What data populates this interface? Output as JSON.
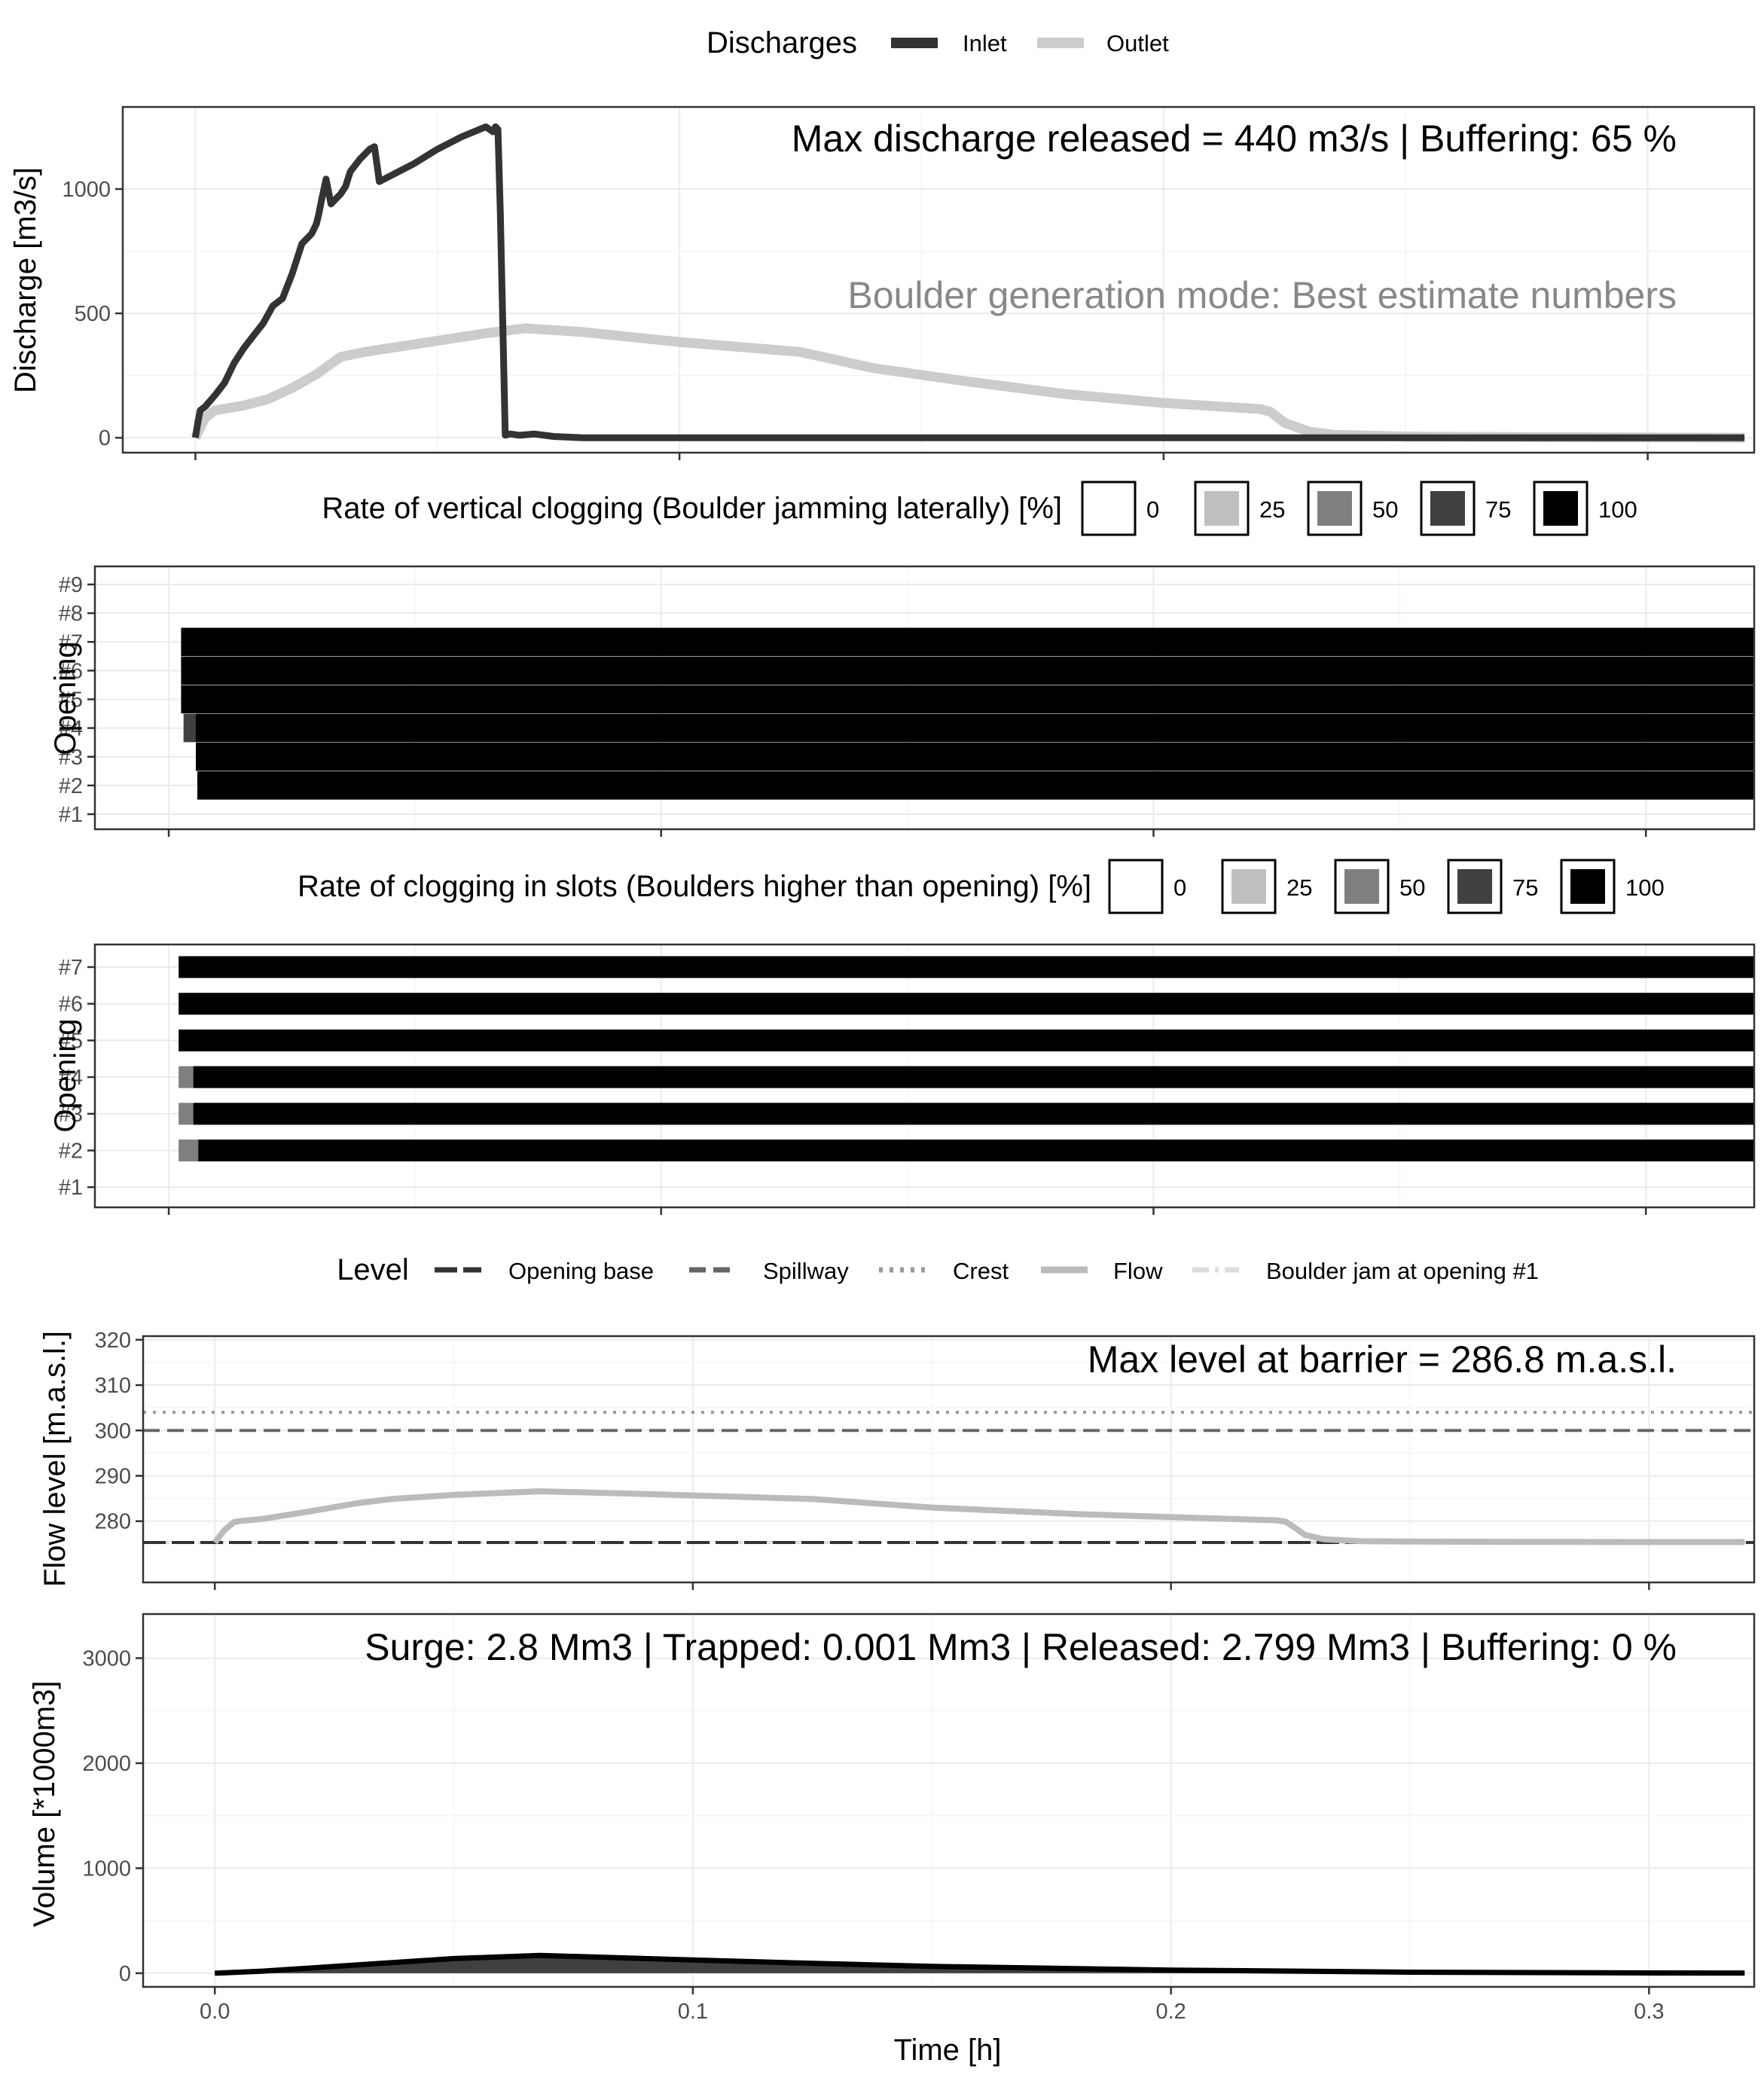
{
  "figure": {
    "x_axis": {
      "label": "Time [h]",
      "range": [
        -0.015,
        0.322
      ],
      "ticks": [
        0.0,
        0.1,
        0.2,
        0.3
      ],
      "tick_labels": [
        "0.0",
        "0.1",
        "0.2",
        "0.3"
      ]
    }
  },
  "legends": {
    "discharges": {
      "title": "Discharges",
      "items": [
        "Inlet",
        "Outlet"
      ]
    },
    "vertical": {
      "title": "Rate of vertical clogging (Boulder jamming laterally) [%]",
      "items": [
        "0",
        "25",
        "50",
        "75",
        "100"
      ]
    },
    "slots": {
      "title": "Rate of clogging in slots (Boulders higher than opening) [%]",
      "items": [
        "0",
        "25",
        "50",
        "75",
        "100"
      ]
    },
    "level": {
      "title": "Level",
      "items": [
        "Opening base",
        "Spillway",
        "Crest",
        "Flow",
        "Boulder jam at opening #1"
      ]
    }
  },
  "colors": {
    "inlet": "#333333",
    "outlet": "#cccccc",
    "fill_scale": [
      "#ffffff",
      "#bfbfbf",
      "#7f7f7f",
      "#404040",
      "#000000"
    ],
    "grid_major": "#ebebeb",
    "grid_minor": "#f5f5f5",
    "annotation_grey": "#888888"
  },
  "chart_data": [
    {
      "type": "line",
      "title": "Discharge",
      "ylabel": "Discharge [m3/s]",
      "ylim": [
        -60,
        1330
      ],
      "yticks": [
        0,
        500,
        1000
      ],
      "ytick_labels": [
        "0",
        "500",
        "1000"
      ],
      "annotation": "Max discharge released = 440 m3/s | Buffering: 65 %",
      "subannotation": "Boulder generation mode: Best estimate numbers",
      "series": [
        {
          "name": "Inlet",
          "x": [
            0.0,
            0.0005,
            0.001,
            0.002,
            0.004,
            0.006,
            0.008,
            0.01,
            0.012,
            0.014,
            0.016,
            0.018,
            0.02,
            0.022,
            0.024,
            0.025,
            0.0255,
            0.026,
            0.027,
            0.028,
            0.03,
            0.031,
            0.0315,
            0.032,
            0.034,
            0.036,
            0.037,
            0.0375,
            0.038,
            0.045,
            0.05,
            0.055,
            0.06,
            0.0615,
            0.062,
            0.0625,
            0.063,
            0.064,
            0.065,
            0.067,
            0.07,
            0.074,
            0.08,
            0.1,
            0.15,
            0.2,
            0.3,
            0.32
          ],
          "values": [
            0,
            60,
            110,
            125,
            170,
            220,
            300,
            360,
            410,
            460,
            530,
            560,
            660,
            780,
            820,
            860,
            900,
            950,
            1040,
            940,
            980,
            1010,
            1040,
            1070,
            1120,
            1160,
            1170,
            1100,
            1030,
            1100,
            1160,
            1210,
            1250,
            1230,
            1250,
            1240,
            900,
            10,
            15,
            10,
            15,
            5,
            0,
            0,
            0,
            0,
            0,
            0
          ]
        },
        {
          "name": "Outlet",
          "x": [
            0.0,
            0.001,
            0.002,
            0.004,
            0.007,
            0.01,
            0.015,
            0.02,
            0.025,
            0.03,
            0.035,
            0.04,
            0.05,
            0.06,
            0.068,
            0.08,
            0.1,
            0.125,
            0.14,
            0.16,
            0.18,
            0.2,
            0.22,
            0.222,
            0.225,
            0.23,
            0.235,
            0.25,
            0.28,
            0.32
          ],
          "values": [
            0,
            40,
            80,
            110,
            120,
            130,
            155,
            200,
            255,
            325,
            345,
            360,
            390,
            420,
            440,
            425,
            385,
            345,
            280,
            225,
            175,
            140,
            115,
            105,
            60,
            25,
            12,
            5,
            2,
            0
          ]
        }
      ]
    },
    {
      "type": "heatmap",
      "title": "Rate of vertical clogging (Boulder jamming laterally) [%]",
      "ylabel": "Opening",
      "categories": [
        "#1",
        "#2",
        "#3",
        "#4",
        "#5",
        "#6",
        "#7",
        "#8",
        "#9"
      ],
      "tick_labels": [
        "#9",
        "#8",
        "#7",
        "#6",
        "#5",
        "#4",
        "#3",
        "#2",
        "#1"
      ],
      "bars": [
        {
          "opening": "#7",
          "start": 0.0025,
          "value": 100
        },
        {
          "opening": "#6",
          "start": 0.0025,
          "value": 100
        },
        {
          "opening": "#5",
          "start": 0.0025,
          "value": 100
        },
        {
          "opening": "#4",
          "start": 0.003,
          "value": 75,
          "then": {
            "start": 0.0055,
            "value": 100
          }
        },
        {
          "opening": "#3",
          "start": 0.0055,
          "value": 100
        },
        {
          "opening": "#2",
          "start": 0.0058,
          "value": 100
        }
      ]
    },
    {
      "type": "heatmap",
      "title": "Rate of clogging in slots (Boulders higher than opening) [%]",
      "ylabel": "Opening",
      "categories": [
        "#1",
        "#2",
        "#3",
        "#4",
        "#5",
        "#6",
        "#7"
      ],
      "tick_labels": [
        "#7",
        "#6",
        "#5",
        "#4",
        "#3",
        "#2",
        "#1"
      ],
      "bars": [
        {
          "opening": "#7",
          "start": 0.002,
          "value": 100
        },
        {
          "opening": "#6",
          "start": 0.002,
          "value": 100
        },
        {
          "opening": "#5",
          "start": 0.002,
          "value": 100
        },
        {
          "opening": "#4",
          "start": 0.002,
          "value": 50,
          "then": {
            "start": 0.005,
            "value": 100
          }
        },
        {
          "opening": "#3",
          "start": 0.002,
          "value": 50,
          "then": {
            "start": 0.005,
            "value": 100
          }
        },
        {
          "opening": "#2",
          "start": 0.002,
          "value": 50,
          "then": {
            "start": 0.006,
            "value": 100
          }
        }
      ]
    },
    {
      "type": "line",
      "title": "Flow level",
      "ylabel": "Flow level [m.a.s.l.]",
      "ylim": [
        266.5,
        320.8
      ],
      "yticks": [
        280,
        290,
        300,
        310,
        320
      ],
      "ytick_labels": [
        "280",
        "290",
        "300",
        "310",
        "320"
      ],
      "annotation": "Max level at barrier = 286.8 m.a.s.l.",
      "hlines": [
        {
          "name": "Opening base",
          "value": 275.3
        },
        {
          "name": "Spillway",
          "value": 300
        },
        {
          "name": "Crest",
          "value": 304
        },
        {
          "name": "Boulder jam at opening #1",
          "value": 275.3
        }
      ],
      "series": [
        {
          "name": "Flow",
          "x": [
            0.0,
            0.002,
            0.004,
            0.005,
            0.01,
            0.02,
            0.03,
            0.037,
            0.05,
            0.068,
            0.09,
            0.125,
            0.15,
            0.18,
            0.2,
            0.222,
            0.224,
            0.226,
            0.228,
            0.232,
            0.24,
            0.25,
            0.3,
            0.32
          ],
          "values": [
            275.3,
            278.0,
            279.8,
            280.0,
            280.5,
            282.2,
            284.0,
            284.9,
            285.8,
            286.6,
            286.0,
            284.9,
            283.0,
            281.6,
            280.9,
            280.2,
            279.9,
            278.5,
            277.0,
            276.0,
            275.6,
            275.5,
            275.4,
            275.4
          ]
        }
      ]
    },
    {
      "type": "area",
      "title": "Volume",
      "ylabel": "Volume [*1000m3]",
      "ylim": [
        -130,
        3420
      ],
      "yticks": [
        0,
        1000,
        2000,
        3000
      ],
      "ytick_labels": [
        "0",
        "1000",
        "2000",
        "3000"
      ],
      "annotation": "Surge: 2.8 Mm3 | Trapped: 0.001 Mm3 | Released: 2.799 Mm3 | Buffering: 0 %",
      "series": [
        {
          "name": "Volume",
          "x": [
            0.0,
            0.01,
            0.03,
            0.05,
            0.068,
            0.09,
            0.12,
            0.15,
            0.2,
            0.25,
            0.3,
            0.32
          ],
          "values": [
            0,
            20,
            80,
            140,
            170,
            140,
            100,
            65,
            30,
            10,
            3,
            2
          ]
        }
      ]
    }
  ]
}
